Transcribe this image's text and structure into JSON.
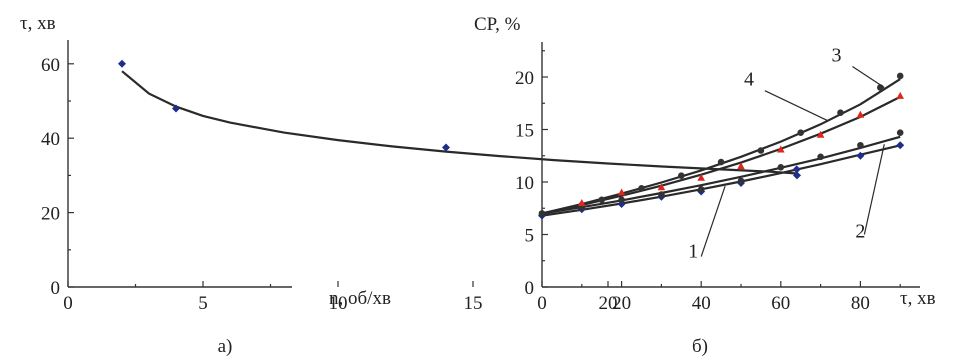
{
  "chart_data": [
    {
      "type": "scatter",
      "title": "",
      "xlabel": "n, об/хв",
      "ylabel": "τ, хв",
      "xlim": [
        0,
        28
      ],
      "ylim": [
        0,
        65
      ],
      "xticks": [
        "0",
        "5",
        "10",
        "15",
        "20"
      ],
      "yticks": [
        "0",
        "20",
        "40",
        "60"
      ],
      "caption": "а)",
      "grid": false,
      "series": [
        {
          "marker_color": "#1f2e8a",
          "points": [
            {
              "x": 2,
              "y": 60
            },
            {
              "x": 4,
              "y": 48
            },
            {
              "x": 14,
              "y": 37.5
            },
            {
              "x": 27,
              "y": 30
            }
          ]
        }
      ],
      "fit_curve": {
        "color": "#2a2a2a",
        "points": [
          [
            2,
            58
          ],
          [
            3,
            52
          ],
          [
            4,
            48.5
          ],
          [
            5,
            46
          ],
          [
            6,
            44.2
          ],
          [
            8,
            41.5
          ],
          [
            10,
            39.5
          ],
          [
            12,
            37.8
          ],
          [
            14,
            36.4
          ],
          [
            16,
            35.2
          ],
          [
            18,
            34.1
          ],
          [
            20,
            33.2
          ],
          [
            22,
            32.4
          ],
          [
            24,
            31.7
          ],
          [
            26,
            31
          ],
          [
            27,
            30.5
          ]
        ]
      }
    },
    {
      "type": "scatter",
      "title": "",
      "xlabel": "τ, хв",
      "ylabel": "CP, %",
      "xlim": [
        0,
        95
      ],
      "ylim": [
        0,
        22
      ],
      "xticks": [
        "0",
        "20",
        "40",
        "60",
        "80"
      ],
      "yticks": [
        "0",
        "5",
        "10",
        "15",
        "20"
      ],
      "caption": "б)",
      "grid": false,
      "series": [
        {
          "name": "1",
          "marker": "diamond",
          "color": "#1f2e8a",
          "points": [
            {
              "x": 0,
              "y": 6.8
            },
            {
              "x": 10,
              "y": 7.4
            },
            {
              "x": 20,
              "y": 7.9
            },
            {
              "x": 30,
              "y": 8.6
            },
            {
              "x": 40,
              "y": 9.1
            },
            {
              "x": 50,
              "y": 9.9
            },
            {
              "x": 64,
              "y": 11.2
            },
            {
              "x": 80,
              "y": 12.5
            },
            {
              "x": 90,
              "y": 13.5
            }
          ],
          "fit": [
            [
              0,
              6.8
            ],
            [
              10,
              7.35
            ],
            [
              20,
              7.95
            ],
            [
              30,
              8.6
            ],
            [
              40,
              9.3
            ],
            [
              50,
              10.05
            ],
            [
              60,
              10.85
            ],
            [
              70,
              11.7
            ],
            [
              80,
              12.6
            ],
            [
              90,
              13.5
            ]
          ],
          "label_at": {
            "x": 38,
            "y": 2.8
          }
        },
        {
          "name": "2",
          "marker": "circle",
          "color": "#333333",
          "points": [
            {
              "x": 0,
              "y": 7.0
            },
            {
              "x": 10,
              "y": 7.6
            },
            {
              "x": 20,
              "y": 8.3
            },
            {
              "x": 30,
              "y": 8.8
            },
            {
              "x": 40,
              "y": 9.3
            },
            {
              "x": 50,
              "y": 10.1
            },
            {
              "x": 60,
              "y": 11.4
            },
            {
              "x": 70,
              "y": 12.4
            },
            {
              "x": 80,
              "y": 13.5
            },
            {
              "x": 90,
              "y": 14.7
            }
          ],
          "fit": [
            [
              0,
              7
            ],
            [
              10,
              7.6
            ],
            [
              20,
              8.25
            ],
            [
              30,
              8.95
            ],
            [
              40,
              9.7
            ],
            [
              50,
              10.5
            ],
            [
              60,
              11.35
            ],
            [
              70,
              12.25
            ],
            [
              80,
              13.25
            ],
            [
              90,
              14.3
            ]
          ],
          "label_at": {
            "x": 80,
            "y": 4.7
          }
        },
        {
          "name": "3",
          "marker": "circle",
          "color": "#333333",
          "points": [
            {
              "x": 0,
              "y": 7.0
            },
            {
              "x": 10,
              "y": 7.8
            },
            {
              "x": 15,
              "y": 8.3
            },
            {
              "x": 25,
              "y": 9.4
            },
            {
              "x": 35,
              "y": 10.6
            },
            {
              "x": 45,
              "y": 11.9
            },
            {
              "x": 55,
              "y": 13.0
            },
            {
              "x": 65,
              "y": 14.7
            },
            {
              "x": 75,
              "y": 16.6
            },
            {
              "x": 85,
              "y": 19.0
            },
            {
              "x": 90,
              "y": 20.1
            }
          ],
          "fit": [
            [
              0,
              7
            ],
            [
              10,
              7.9
            ],
            [
              20,
              8.9
            ],
            [
              30,
              9.95
            ],
            [
              40,
              11.1
            ],
            [
              50,
              12.4
            ],
            [
              60,
              13.85
            ],
            [
              70,
              15.5
            ],
            [
              80,
              17.4
            ],
            [
              90,
              19.8
            ]
          ],
          "label_at": {
            "x": 74,
            "y": 21.5
          }
        },
        {
          "name": "4",
          "marker": "triangle",
          "color": "#e0261a",
          "points": [
            {
              "x": 10,
              "y": 8.0
            },
            {
              "x": 20,
              "y": 9.0
            },
            {
              "x": 30,
              "y": 9.5
            },
            {
              "x": 40,
              "y": 10.4
            },
            {
              "x": 50,
              "y": 11.5
            },
            {
              "x": 60,
              "y": 13.1
            },
            {
              "x": 70,
              "y": 14.5
            },
            {
              "x": 80,
              "y": 16.4
            },
            {
              "x": 90,
              "y": 18.2
            }
          ],
          "fit": [
            [
              0,
              7
            ],
            [
              10,
              7.8
            ],
            [
              20,
              8.7
            ],
            [
              30,
              9.65
            ],
            [
              40,
              10.7
            ],
            [
              50,
              11.85
            ],
            [
              60,
              13.15
            ],
            [
              70,
              14.6
            ],
            [
              80,
              16.2
            ],
            [
              90,
              18.1
            ]
          ],
          "label_at": {
            "x": 52,
            "y": 19.2
          }
        }
      ]
    }
  ]
}
